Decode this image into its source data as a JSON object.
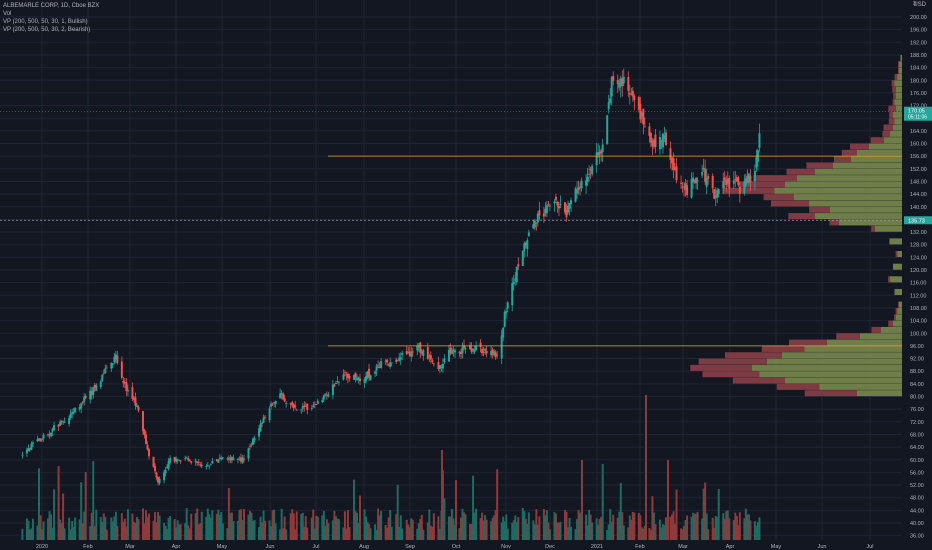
{
  "legend": {
    "symbol_line": "ALBEMARLE CORP, 1D, Cboe BZX",
    "vol": "Vol",
    "vp_bull": "VP (200, 500, 50, 30, 1, Bullish)",
    "vp_bear": "VP (200, 500, 50, 30, 2, Bearish)"
  },
  "corner": {
    "currency": "USD",
    "scale_mark": "3"
  },
  "chart_data": {
    "type": "candlestick",
    "title": "ALBEMARLE CORP, 1D, Cboe BZX",
    "y_ticks": [
      36,
      40,
      44,
      48,
      52,
      56,
      60,
      64,
      68,
      72,
      76,
      80,
      84,
      88,
      92,
      96,
      100,
      104,
      108,
      112,
      116,
      120,
      124,
      128,
      132,
      136,
      140,
      144,
      148,
      152,
      156,
      160,
      164,
      168,
      172,
      176,
      180,
      184,
      188,
      192,
      196,
      200,
      204
    ],
    "ylim": [
      34.5,
      205
    ],
    "x_ticks": [
      "2020",
      "Feb",
      "Mar",
      "Apr",
      "May",
      "Jun",
      "Jul",
      "Aug",
      "Sep",
      "Oct",
      "Nov",
      "Dec",
      "2021",
      "Feb",
      "Mar",
      "Apr",
      "May",
      "Jun",
      "Jul"
    ],
    "price_waypoints": [
      [
        "2019-12-20",
        62
      ],
      [
        "2020-01-02",
        67
      ],
      [
        "2020-01-20",
        74
      ],
      [
        "2020-02-05",
        82
      ],
      [
        "2020-02-20",
        93
      ],
      [
        "2020-02-27",
        82
      ],
      [
        "2020-03-06",
        76
      ],
      [
        "2020-03-12",
        63
      ],
      [
        "2020-03-19",
        53
      ],
      [
        "2020-03-27",
        60
      ],
      [
        "2020-04-08",
        60
      ],
      [
        "2020-04-20",
        58
      ],
      [
        "2020-05-01",
        61
      ],
      [
        "2020-05-15",
        60
      ],
      [
        "2020-05-27",
        72
      ],
      [
        "2020-06-08",
        82
      ],
      [
        "2020-06-12",
        77
      ],
      [
        "2020-06-25",
        76
      ],
      [
        "2020-07-08",
        80
      ],
      [
        "2020-07-20",
        87
      ],
      [
        "2020-07-31",
        85
      ],
      [
        "2020-08-14",
        90
      ],
      [
        "2020-08-28",
        93
      ],
      [
        "2020-09-08",
        95
      ],
      [
        "2020-09-21",
        89
      ],
      [
        "2020-09-28",
        94
      ],
      [
        "2020-10-15",
        95
      ],
      [
        "2020-10-30",
        93
      ],
      [
        "2020-11-05",
        108
      ],
      [
        "2020-11-16",
        126
      ],
      [
        "2020-11-25",
        136
      ],
      [
        "2020-12-07",
        142
      ],
      [
        "2020-12-14",
        137
      ],
      [
        "2020-12-21",
        146
      ],
      [
        "2020-12-31",
        151
      ],
      [
        "2021-01-08",
        160
      ],
      [
        "2021-01-14",
        180
      ],
      [
        "2021-01-22",
        179
      ],
      [
        "2021-02-01",
        170
      ],
      [
        "2021-02-10",
        160
      ],
      [
        "2021-02-18",
        163
      ],
      [
        "2021-02-26",
        150
      ],
      [
        "2021-03-05",
        145
      ],
      [
        "2021-03-15",
        152
      ],
      [
        "2021-03-23",
        143
      ],
      [
        "2021-03-31",
        148
      ],
      [
        "2021-04-09",
        146
      ],
      [
        "2021-04-16",
        149
      ],
      [
        "2021-04-21",
        156
      ],
      [
        "2021-04-23",
        170
      ]
    ],
    "last_price": "170.05",
    "last_price_countdown": "05:11:06",
    "marker_price": "135.73",
    "horizontal_levels": [
      156.0,
      96.0
    ],
    "volume_profile": {
      "row_size": 2,
      "rows": [
        [
          80,
          0.3,
          0.55
        ],
        [
          82,
          0.55,
          0.45
        ],
        [
          84,
          0.78,
          0.55
        ],
        [
          86,
          0.95,
          0.6
        ],
        [
          88,
          1.0,
          0.65
        ],
        [
          90,
          0.9,
          0.72
        ],
        [
          92,
          0.8,
          0.6
        ],
        [
          94,
          0.65,
          0.45
        ],
        [
          96,
          0.5,
          0.4
        ],
        [
          98,
          0.28,
          0.25
        ],
        [
          100,
          0.14,
          0.1
        ],
        [
          102,
          0.06,
          0.05
        ],
        [
          104,
          0.04,
          0.02
        ],
        [
          106,
          0.03,
          0.02
        ],
        [
          108,
          0.02,
          0.01
        ],
        [
          112,
          0.05,
          0.0
        ],
        [
          116,
          0.08,
          0.02
        ],
        [
          120,
          0.06,
          0.0
        ],
        [
          124,
          0.03,
          0.02
        ],
        [
          128,
          0.08,
          0.01
        ],
        [
          132,
          0.18,
          0.04
        ],
        [
          134,
          0.42,
          0.1
        ],
        [
          136,
          0.58,
          0.28
        ],
        [
          138,
          0.48,
          0.22
        ],
        [
          140,
          0.62,
          0.4
        ],
        [
          142,
          0.72,
          0.32
        ],
        [
          144,
          0.85,
          0.55
        ],
        [
          146,
          0.78,
          0.48
        ],
        [
          148,
          0.7,
          0.46
        ],
        [
          150,
          0.58,
          0.3
        ],
        [
          152,
          0.46,
          0.28
        ],
        [
          154,
          0.34,
          0.18
        ],
        [
          156,
          0.3,
          0.16
        ],
        [
          158,
          0.22,
          0.2
        ],
        [
          160,
          0.12,
          0.14
        ],
        [
          162,
          0.08,
          0.08
        ],
        [
          164,
          0.06,
          0.1
        ],
        [
          166,
          0.05,
          0.06
        ],
        [
          168,
          0.06,
          0.04
        ],
        [
          170,
          0.04,
          0.08
        ],
        [
          172,
          0.05,
          0.02
        ],
        [
          174,
          0.04,
          0.03
        ],
        [
          176,
          0.04,
          0.04
        ],
        [
          178,
          0.05,
          0.03
        ],
        [
          180,
          0.03,
          0.03
        ],
        [
          182,
          0.02,
          0.01
        ],
        [
          184,
          0.02,
          0.01
        ],
        [
          186,
          0.01,
          0.0
        ]
      ]
    }
  },
  "colors": {
    "background": "#131722",
    "grid": "#1f2433",
    "up": "#26a69a",
    "down": "#ef5350",
    "vol_up": "#1e6b63",
    "vol_down": "#8e3a3a",
    "vp_bull": "#7a8a4e",
    "vp_bear": "#8c3f48",
    "level_line": "#e8a235",
    "last_price_bg": "#26a69a",
    "marker_bg": "#26a69a",
    "axis_text": "#b2b5be"
  }
}
